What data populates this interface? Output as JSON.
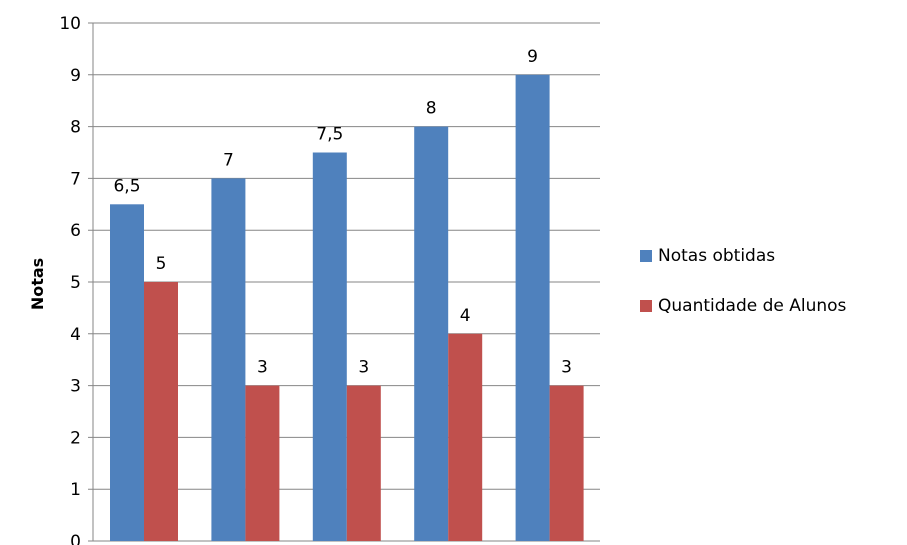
{
  "chart_data": {
    "type": "bar",
    "ylabel": "Notas",
    "xlabel": "",
    "ylim": [
      0,
      10
    ],
    "yticks": [
      "0",
      "1",
      "2",
      "3",
      "4",
      "5",
      "6",
      "7",
      "8",
      "9",
      "10"
    ],
    "categories": [
      "",
      "",
      "",
      "",
      ""
    ],
    "series": [
      {
        "name": "Notas obtidas",
        "color": "#4F81BD",
        "values": [
          6.5,
          7,
          7.5,
          8,
          9
        ],
        "labels": [
          "6,5",
          "7",
          "7,5",
          "8",
          "9"
        ]
      },
      {
        "name": "Quantidade de Alunos",
        "color": "#C0504D",
        "values": [
          5,
          3,
          3,
          4,
          3
        ],
        "labels": [
          "5",
          "3",
          "3",
          "4",
          "3"
        ]
      }
    ],
    "grid": true,
    "legend_position": "right"
  }
}
